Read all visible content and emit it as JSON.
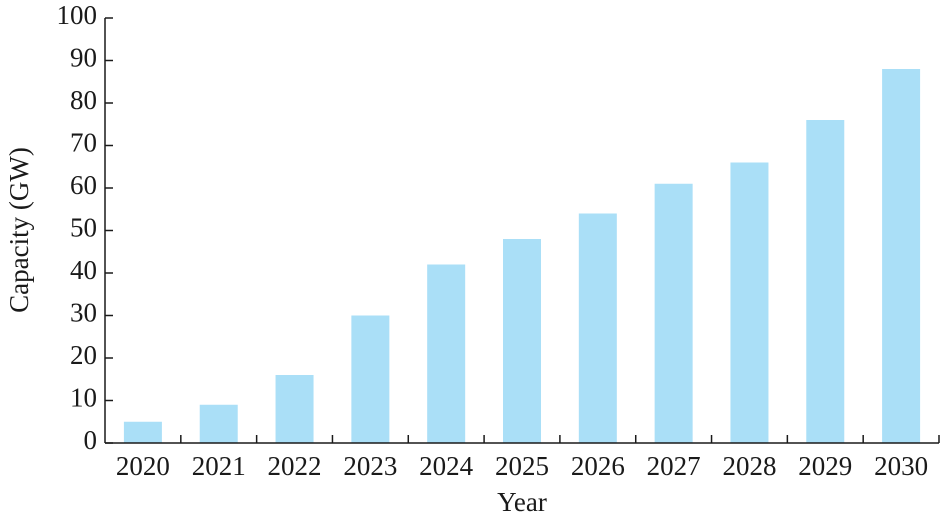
{
  "chart_data": {
    "type": "bar",
    "x_label": "Year",
    "y_label": "Capacity (GW)",
    "categories": [
      "2020",
      "2021",
      "2022",
      "2023",
      "2024",
      "2025",
      "2026",
      "2027",
      "2028",
      "2029",
      "2030"
    ],
    "values": [
      5,
      9,
      16,
      30,
      42,
      48,
      54,
      61,
      66,
      76,
      88
    ],
    "color": "#aadff7",
    "ylim": [
      0,
      100
    ],
    "yticks": [
      0,
      10,
      20,
      30,
      40,
      50,
      60,
      70,
      80,
      90,
      100
    ],
    "grid": false
  }
}
